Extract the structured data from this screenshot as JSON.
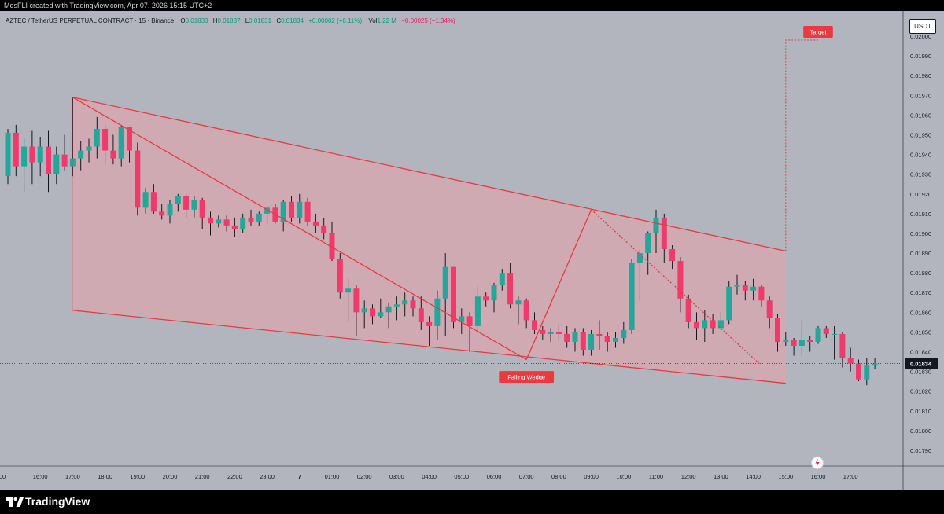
{
  "header": {
    "credit": "MosFLI created with TradingView.com, Apr 07, 2026 15:15 UTC+2"
  },
  "legend": {
    "symbol": "AZTEC / TetherUS PERPETUAL CONTRACT · 15 · Binance",
    "o_label": "O",
    "o_value": "0.01833",
    "h_label": "H",
    "h_value": "0.01837",
    "l_label": "L",
    "l_value": "0.01831",
    "c_label": "C",
    "c_value": "0.01834",
    "change": "+0.00002 (+0.11%)",
    "vol_label": "Vol",
    "vol_value": "1.22 M",
    "vol_change": "−0.00025 (−1.34%)"
  },
  "currency_button": "USDT",
  "footer": {
    "brand": "TradingView"
  },
  "colors": {
    "up": "#26a69a",
    "down": "#ef3a6b",
    "wedge": "#e83a3f",
    "wedge_fill": "#e8a0a9",
    "background": "#b2b5be"
  },
  "icons": [
    "tradingview-logo-icon",
    "lightning-icon"
  ],
  "chart_data": {
    "type": "candlestick",
    "title": "",
    "interval_minutes": 15,
    "current_price": "0.01834",
    "ylim": [
      0.01781,
      0.02005
    ],
    "y_ticks": [
      "0.02000",
      "0.01990",
      "0.01980",
      "0.01970",
      "0.01960",
      "0.01950",
      "0.01940",
      "0.01930",
      "0.01920",
      "0.01910",
      "0.01900",
      "0.01890",
      "0.01880",
      "0.01870",
      "0.01860",
      "0.01850",
      "0.01840",
      "0.01830",
      "0.01820",
      "0.01810",
      "0.01800",
      "0.01790"
    ],
    "x_ticks": [
      {
        "label": ":00",
        "t": 0
      },
      {
        "label": "16:00",
        "t": 4
      },
      {
        "label": "17:00",
        "t": 8
      },
      {
        "label": "18:00",
        "t": 12
      },
      {
        "label": "19:00",
        "t": 16
      },
      {
        "label": "20:00",
        "t": 20
      },
      {
        "label": "21:00",
        "t": 24
      },
      {
        "label": "22:00",
        "t": 28
      },
      {
        "label": "23:00",
        "t": 32
      },
      {
        "label": "7",
        "t": 36
      },
      {
        "label": "01:00",
        "t": 40
      },
      {
        "label": "02:00",
        "t": 44
      },
      {
        "label": "03:00",
        "t": 48
      },
      {
        "label": "04:00",
        "t": 52
      },
      {
        "label": "05:00",
        "t": 56
      },
      {
        "label": "06:00",
        "t": 60
      },
      {
        "label": "07:00",
        "t": 64
      },
      {
        "label": "08:00",
        "t": 68
      },
      {
        "label": "09:00",
        "t": 72
      },
      {
        "label": "10:00",
        "t": 76
      },
      {
        "label": "11:00",
        "t": 80
      },
      {
        "label": "12:00",
        "t": 84
      },
      {
        "label": "13:00",
        "t": 88
      },
      {
        "label": "14:00",
        "t": 92
      },
      {
        "label": "15:00",
        "t": 96
      },
      {
        "label": "16:00",
        "t": 100
      },
      {
        "label": "17:00",
        "t": 104
      }
    ],
    "candles": [
      {
        "o": 0.01929,
        "h": 0.01953,
        "l": 0.01925,
        "c": 0.01951
      },
      {
        "o": 0.01951,
        "h": 0.01955,
        "l": 0.01929,
        "c": 0.01934
      },
      {
        "o": 0.01934,
        "h": 0.01948,
        "l": 0.01921,
        "c": 0.01944
      },
      {
        "o": 0.01944,
        "h": 0.01952,
        "l": 0.01925,
        "c": 0.01936
      },
      {
        "o": 0.01936,
        "h": 0.01949,
        "l": 0.01929,
        "c": 0.01944
      },
      {
        "o": 0.01944,
        "h": 0.01952,
        "l": 0.01921,
        "c": 0.0193
      },
      {
        "o": 0.0193,
        "h": 0.01944,
        "l": 0.01925,
        "c": 0.0194
      },
      {
        "o": 0.0194,
        "h": 0.0195,
        "l": 0.01932,
        "c": 0.01934
      },
      {
        "o": 0.01934,
        "h": 0.01969,
        "l": 0.01929,
        "c": 0.01938
      },
      {
        "o": 0.01938,
        "h": 0.01947,
        "l": 0.01932,
        "c": 0.01942
      },
      {
        "o": 0.01942,
        "h": 0.01948,
        "l": 0.01936,
        "c": 0.01944
      },
      {
        "o": 0.01944,
        "h": 0.01959,
        "l": 0.01938,
        "c": 0.01953
      },
      {
        "o": 0.01953,
        "h": 0.01955,
        "l": 0.01935,
        "c": 0.01942
      },
      {
        "o": 0.01942,
        "h": 0.0195,
        "l": 0.01935,
        "c": 0.01938
      },
      {
        "o": 0.01938,
        "h": 0.01955,
        "l": 0.01934,
        "c": 0.01954
      },
      {
        "o": 0.01954,
        "h": 0.01954,
        "l": 0.01936,
        "c": 0.01942
      },
      {
        "o": 0.01942,
        "h": 0.01946,
        "l": 0.01909,
        "c": 0.01913
      },
      {
        "o": 0.01913,
        "h": 0.01923,
        "l": 0.0191,
        "c": 0.01921
      },
      {
        "o": 0.01921,
        "h": 0.01925,
        "l": 0.0191,
        "c": 0.01911
      },
      {
        "o": 0.01911,
        "h": 0.01915,
        "l": 0.01907,
        "c": 0.01909
      },
      {
        "o": 0.01909,
        "h": 0.01917,
        "l": 0.01905,
        "c": 0.01915
      },
      {
        "o": 0.01915,
        "h": 0.0192,
        "l": 0.01911,
        "c": 0.01919
      },
      {
        "o": 0.01919,
        "h": 0.0192,
        "l": 0.01908,
        "c": 0.01912
      },
      {
        "o": 0.01912,
        "h": 0.01919,
        "l": 0.01908,
        "c": 0.01917
      },
      {
        "o": 0.01917,
        "h": 0.01918,
        "l": 0.01902,
        "c": 0.01908
      },
      {
        "o": 0.01908,
        "h": 0.01911,
        "l": 0.01899,
        "c": 0.01905
      },
      {
        "o": 0.01905,
        "h": 0.01909,
        "l": 0.01903,
        "c": 0.01907
      },
      {
        "o": 0.01907,
        "h": 0.01909,
        "l": 0.01901,
        "c": 0.01904
      },
      {
        "o": 0.01904,
        "h": 0.01908,
        "l": 0.01898,
        "c": 0.01902
      },
      {
        "o": 0.01902,
        "h": 0.0191,
        "l": 0.019,
        "c": 0.01908
      },
      {
        "o": 0.01908,
        "h": 0.01912,
        "l": 0.01904,
        "c": 0.01906
      },
      {
        "o": 0.01906,
        "h": 0.01911,
        "l": 0.01904,
        "c": 0.0191
      },
      {
        "o": 0.0191,
        "h": 0.01914,
        "l": 0.01905,
        "c": 0.01913
      },
      {
        "o": 0.01913,
        "h": 0.01915,
        "l": 0.01905,
        "c": 0.01906
      },
      {
        "o": 0.01906,
        "h": 0.01917,
        "l": 0.01901,
        "c": 0.01916
      },
      {
        "o": 0.01916,
        "h": 0.01919,
        "l": 0.01906,
        "c": 0.01908
      },
      {
        "o": 0.01908,
        "h": 0.0192,
        "l": 0.01905,
        "c": 0.01916
      },
      {
        "o": 0.01916,
        "h": 0.01918,
        "l": 0.01904,
        "c": 0.01906
      },
      {
        "o": 0.01906,
        "h": 0.0191,
        "l": 0.019,
        "c": 0.01904
      },
      {
        "o": 0.01904,
        "h": 0.01908,
        "l": 0.01897,
        "c": 0.019
      },
      {
        "o": 0.019,
        "h": 0.01906,
        "l": 0.01886,
        "c": 0.01887
      },
      {
        "o": 0.01887,
        "h": 0.0189,
        "l": 0.01867,
        "c": 0.0187
      },
      {
        "o": 0.0187,
        "h": 0.01877,
        "l": 0.01855,
        "c": 0.01872
      },
      {
        "o": 0.01872,
        "h": 0.01874,
        "l": 0.01848,
        "c": 0.0186
      },
      {
        "o": 0.0186,
        "h": 0.01866,
        "l": 0.01852,
        "c": 0.01862
      },
      {
        "o": 0.01862,
        "h": 0.01864,
        "l": 0.01854,
        "c": 0.01858
      },
      {
        "o": 0.01858,
        "h": 0.01867,
        "l": 0.01857,
        "c": 0.0186
      },
      {
        "o": 0.0186,
        "h": 0.01865,
        "l": 0.01852,
        "c": 0.01863
      },
      {
        "o": 0.01863,
        "h": 0.01868,
        "l": 0.01856,
        "c": 0.01864
      },
      {
        "o": 0.01864,
        "h": 0.0187,
        "l": 0.01858,
        "c": 0.01866
      },
      {
        "o": 0.01866,
        "h": 0.01868,
        "l": 0.01858,
        "c": 0.01862
      },
      {
        "o": 0.01862,
        "h": 0.01868,
        "l": 0.01851,
        "c": 0.01855
      },
      {
        "o": 0.01855,
        "h": 0.01858,
        "l": 0.01843,
        "c": 0.01853
      },
      {
        "o": 0.01853,
        "h": 0.01871,
        "l": 0.01846,
        "c": 0.01867
      },
      {
        "o": 0.01867,
        "h": 0.0189,
        "l": 0.01848,
        "c": 0.01883
      },
      {
        "o": 0.01883,
        "h": 0.01883,
        "l": 0.01852,
        "c": 0.01855
      },
      {
        "o": 0.01855,
        "h": 0.01862,
        "l": 0.01849,
        "c": 0.01858
      },
      {
        "o": 0.01858,
        "h": 0.0186,
        "l": 0.0184,
        "c": 0.01853
      },
      {
        "o": 0.01853,
        "h": 0.01873,
        "l": 0.0185,
        "c": 0.01868
      },
      {
        "o": 0.01868,
        "h": 0.0187,
        "l": 0.01863,
        "c": 0.01866
      },
      {
        "o": 0.01866,
        "h": 0.01875,
        "l": 0.0186,
        "c": 0.01874
      },
      {
        "o": 0.01874,
        "h": 0.01882,
        "l": 0.01871,
        "c": 0.0188
      },
      {
        "o": 0.0188,
        "h": 0.01885,
        "l": 0.01862,
        "c": 0.01864
      },
      {
        "o": 0.01864,
        "h": 0.01868,
        "l": 0.01854,
        "c": 0.01866
      },
      {
        "o": 0.01866,
        "h": 0.01867,
        "l": 0.01852,
        "c": 0.01856
      },
      {
        "o": 0.01856,
        "h": 0.0186,
        "l": 0.01849,
        "c": 0.01851
      },
      {
        "o": 0.01851,
        "h": 0.01853,
        "l": 0.01846,
        "c": 0.01849
      },
      {
        "o": 0.01849,
        "h": 0.01852,
        "l": 0.01845,
        "c": 0.0185
      },
      {
        "o": 0.0185,
        "h": 0.01854,
        "l": 0.01846,
        "c": 0.01849
      },
      {
        "o": 0.01849,
        "h": 0.01853,
        "l": 0.01842,
        "c": 0.01845
      },
      {
        "o": 0.01845,
        "h": 0.01852,
        "l": 0.0184,
        "c": 0.0185
      },
      {
        "o": 0.0185,
        "h": 0.01852,
        "l": 0.01838,
        "c": 0.01841
      },
      {
        "o": 0.01841,
        "h": 0.01851,
        "l": 0.01838,
        "c": 0.01849
      },
      {
        "o": 0.01849,
        "h": 0.01856,
        "l": 0.01841,
        "c": 0.01848
      },
      {
        "o": 0.01848,
        "h": 0.0185,
        "l": 0.0184,
        "c": 0.01845
      },
      {
        "o": 0.01845,
        "h": 0.0185,
        "l": 0.01842,
        "c": 0.01847
      },
      {
        "o": 0.01847,
        "h": 0.01855,
        "l": 0.01844,
        "c": 0.01851
      },
      {
        "o": 0.01851,
        "h": 0.01887,
        "l": 0.01849,
        "c": 0.01885
      },
      {
        "o": 0.01885,
        "h": 0.01892,
        "l": 0.01866,
        "c": 0.0189
      },
      {
        "o": 0.0189,
        "h": 0.01901,
        "l": 0.01879,
        "c": 0.019
      },
      {
        "o": 0.019,
        "h": 0.01912,
        "l": 0.0189,
        "c": 0.01908
      },
      {
        "o": 0.01908,
        "h": 0.0191,
        "l": 0.01885,
        "c": 0.01892
      },
      {
        "o": 0.01892,
        "h": 0.01894,
        "l": 0.01882,
        "c": 0.01886
      },
      {
        "o": 0.01886,
        "h": 0.01888,
        "l": 0.0186,
        "c": 0.01867
      },
      {
        "o": 0.01867,
        "h": 0.01869,
        "l": 0.01852,
        "c": 0.01855
      },
      {
        "o": 0.01855,
        "h": 0.0186,
        "l": 0.01846,
        "c": 0.01852
      },
      {
        "o": 0.01852,
        "h": 0.01861,
        "l": 0.01845,
        "c": 0.01856
      },
      {
        "o": 0.01856,
        "h": 0.01859,
        "l": 0.01849,
        "c": 0.01852
      },
      {
        "o": 0.01852,
        "h": 0.0186,
        "l": 0.01851,
        "c": 0.01856
      },
      {
        "o": 0.01856,
        "h": 0.01876,
        "l": 0.01854,
        "c": 0.01873
      },
      {
        "o": 0.01873,
        "h": 0.01879,
        "l": 0.01869,
        "c": 0.01874
      },
      {
        "o": 0.01874,
        "h": 0.01876,
        "l": 0.01866,
        "c": 0.01871
      },
      {
        "o": 0.01871,
        "h": 0.01877,
        "l": 0.01866,
        "c": 0.01873
      },
      {
        "o": 0.01873,
        "h": 0.01874,
        "l": 0.01863,
        "c": 0.01866
      },
      {
        "o": 0.01866,
        "h": 0.01868,
        "l": 0.01852,
        "c": 0.01857
      },
      {
        "o": 0.01857,
        "h": 0.01859,
        "l": 0.0184,
        "c": 0.01845
      },
      {
        "o": 0.01845,
        "h": 0.0185,
        "l": 0.01843,
        "c": 0.01846
      },
      {
        "o": 0.01846,
        "h": 0.01847,
        "l": 0.01838,
        "c": 0.01843
      },
      {
        "o": 0.01843,
        "h": 0.01856,
        "l": 0.01838,
        "c": 0.01846
      },
      {
        "o": 0.01846,
        "h": 0.01848,
        "l": 0.0184,
        "c": 0.01845
      },
      {
        "o": 0.01845,
        "h": 0.01853,
        "l": 0.01844,
        "c": 0.01852
      },
      {
        "o": 0.01852,
        "h": 0.01853,
        "l": 0.01847,
        "c": 0.01849
      },
      {
        "o": 0.01849,
        "h": 0.01853,
        "l": 0.01836,
        "c": 0.01849
      },
      {
        "o": 0.01849,
        "h": 0.0185,
        "l": 0.01832,
        "c": 0.01837
      },
      {
        "o": 0.01837,
        "h": 0.01842,
        "l": 0.0183,
        "c": 0.01834
      },
      {
        "o": 0.01834,
        "h": 0.01836,
        "l": 0.01825,
        "c": 0.01826
      },
      {
        "o": 0.01826,
        "h": 0.01837,
        "l": 0.01823,
        "c": 0.01833
      },
      {
        "o": 0.01833,
        "h": 0.01837,
        "l": 0.01831,
        "c": 0.01834
      }
    ],
    "drawings": {
      "wedge_upper": {
        "from": {
          "t": 8,
          "price": 0.01969
        },
        "to": {
          "t": 96,
          "price": 0.01891
        }
      },
      "wedge_lower": {
        "from": {
          "t": 8,
          "price": 0.01861
        },
        "to": {
          "t": 96,
          "price": 0.01824
        }
      },
      "zigzag": [
        {
          "t": 8,
          "price": 0.01969
        },
        {
          "t": 64,
          "price": 0.01836
        },
        {
          "t": 72,
          "price": 0.01912
        },
        {
          "t": 93,
          "price": 0.01833
        }
      ],
      "projection": {
        "base": {
          "t": 96,
          "price": 0.01891
        },
        "target_price": 0.01998,
        "end_t": 100
      },
      "labels": [
        {
          "text": "Falling Wedge",
          "t": 64,
          "price": 0.01827
        },
        {
          "text": "Target",
          "t": 100,
          "price": 0.02002
        }
      ]
    }
  }
}
